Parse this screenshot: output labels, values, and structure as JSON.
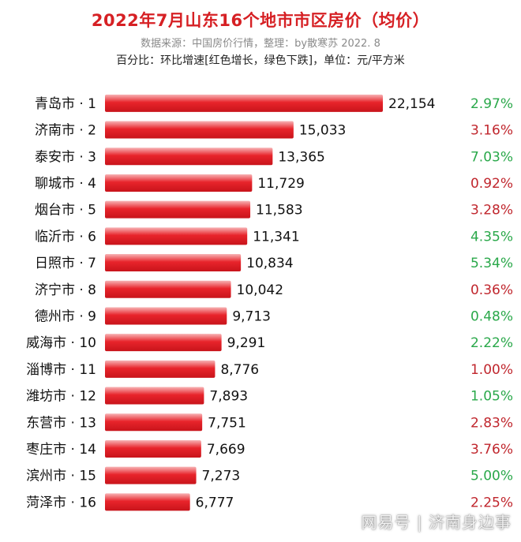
{
  "header": {
    "title": "2022年7月山东16个地市市区房价（均价）",
    "subtitle": "数据来源：中国房价行情，整理：by散寒苏 2022. 8",
    "note": "百分比：环比增速[红色增长，绿色下跌]，单位：元/平方米"
  },
  "watermark": "网易号 | 济南身边事",
  "colors": {
    "bar": "#e8242b",
    "increase": "#c0262d",
    "decrease": "#2aa84a"
  },
  "chart_data": {
    "type": "bar",
    "orientation": "horizontal",
    "title": "2022年7月山东16个地市市区房价（均价）",
    "xlim": [
      0,
      22154
    ],
    "categories": [
      "青岛市 · 1",
      "济南市 · 2",
      "泰安市 · 3",
      "聊城市 · 4",
      "烟台市 · 5",
      "临沂市 · 6",
      "日照市 · 7",
      "济宁市 · 8",
      "德州市 · 9",
      "威海市 · 10",
      "淄博市 · 11",
      "潍坊市 · 12",
      "东营市 · 13",
      "枣庄市 · 14",
      "滨州市 · 15",
      "菏泽市 · 16"
    ],
    "values": [
      22154,
      15033,
      13365,
      11729,
      11583,
      11341,
      10834,
      10042,
      9713,
      9291,
      8776,
      7893,
      7751,
      7669,
      7273,
      6777
    ],
    "value_labels": [
      "22,154",
      "15,033",
      "13,365",
      "11,729",
      "11,583",
      "11,341",
      "10,834",
      "10,042",
      "9,713",
      "9,291",
      "8,776",
      "7,893",
      "7,751",
      "7,669",
      "7,273",
      "6,777"
    ],
    "mom_change": [
      "2.97%",
      "3.16%",
      "7.03%",
      "0.92%",
      "3.28%",
      "4.35%",
      "5.34%",
      "0.36%",
      "0.48%",
      "2.22%",
      "1.00%",
      "1.05%",
      "2.83%",
      "3.76%",
      "5.00%",
      "2.25%"
    ],
    "mom_direction": [
      "down",
      "up",
      "down",
      "up",
      "up",
      "down",
      "down",
      "up",
      "down",
      "down",
      "up",
      "down",
      "up",
      "up",
      "down",
      "up"
    ]
  }
}
